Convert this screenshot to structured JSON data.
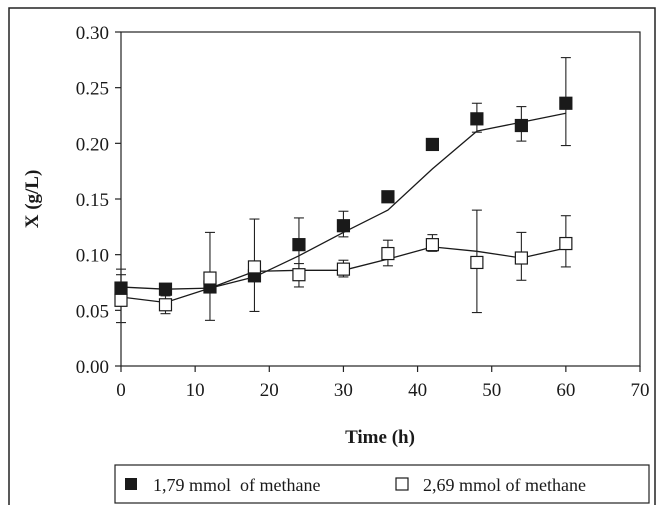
{
  "chart_data": {
    "type": "line",
    "xlabel": "Time (h)",
    "ylabel": "X (g/L)",
    "xlim": [
      0,
      70
    ],
    "ylim": [
      0,
      0.3
    ],
    "x_ticks": [
      "0",
      "10",
      "20",
      "30",
      "40",
      "50",
      "60",
      "70"
    ],
    "y_ticks": [
      "0.00",
      "0.05",
      "0.10",
      "0.15",
      "0.20",
      "0.25",
      "0.30"
    ],
    "grid": false,
    "legend_position": "bottom",
    "series": [
      {
        "name": "1,79 mmol  of methane",
        "marker": "filled-square",
        "color": "#1a1a1a",
        "points": [
          {
            "x": 0,
            "y": 0.07,
            "err_low": 0.058,
            "err_high": 0.082
          },
          {
            "x": 6,
            "y": 0.069,
            "err_low": 0.069,
            "err_high": 0.069
          },
          {
            "x": 12,
            "y": 0.071,
            "err_low": 0.071,
            "err_high": 0.071
          },
          {
            "x": 18,
            "y": 0.081,
            "err_low": 0.081,
            "err_high": 0.081
          },
          {
            "x": 24,
            "y": 0.109,
            "err_low": 0.085,
            "err_high": 0.133
          },
          {
            "x": 30,
            "y": 0.126,
            "err_low": 0.116,
            "err_high": 0.139
          },
          {
            "x": 36,
            "y": 0.152,
            "err_low": 0.152,
            "err_high": 0.152
          },
          {
            "x": 42,
            "y": 0.199,
            "err_low": 0.199,
            "err_high": 0.199
          },
          {
            "x": 48,
            "y": 0.222,
            "err_low": 0.21,
            "err_high": 0.236
          },
          {
            "x": 54,
            "y": 0.216,
            "err_low": 0.202,
            "err_high": 0.233
          },
          {
            "x": 60,
            "y": 0.236,
            "err_low": 0.198,
            "err_high": 0.277
          }
        ],
        "fit_line": [
          {
            "x": 0,
            "y": 0.071
          },
          {
            "x": 6,
            "y": 0.069
          },
          {
            "x": 12,
            "y": 0.07
          },
          {
            "x": 18,
            "y": 0.08
          },
          {
            "x": 24,
            "y": 0.099
          },
          {
            "x": 30,
            "y": 0.12
          },
          {
            "x": 36,
            "y": 0.14
          },
          {
            "x": 42,
            "y": 0.177
          },
          {
            "x": 48,
            "y": 0.211
          },
          {
            "x": 54,
            "y": 0.219
          },
          {
            "x": 60,
            "y": 0.227
          }
        ]
      },
      {
        "name": "2,69 mmol of methane",
        "marker": "open-square",
        "color": "#1a1a1a",
        "points": [
          {
            "x": 0,
            "y": 0.059,
            "err_low": 0.039,
            "err_high": 0.087
          },
          {
            "x": 6,
            "y": 0.055,
            "err_low": 0.047,
            "err_high": 0.063
          },
          {
            "x": 12,
            "y": 0.079,
            "err_low": 0.041,
            "err_high": 0.12
          },
          {
            "x": 18,
            "y": 0.089,
            "err_low": 0.049,
            "err_high": 0.132
          },
          {
            "x": 24,
            "y": 0.082,
            "err_low": 0.071,
            "err_high": 0.092
          },
          {
            "x": 30,
            "y": 0.087,
            "err_low": 0.08,
            "err_high": 0.095
          },
          {
            "x": 36,
            "y": 0.101,
            "err_low": 0.09,
            "err_high": 0.113
          },
          {
            "x": 42,
            "y": 0.109,
            "err_low": 0.103,
            "err_high": 0.118
          },
          {
            "x": 48,
            "y": 0.093,
            "err_low": 0.048,
            "err_high": 0.14
          },
          {
            "x": 54,
            "y": 0.097,
            "err_low": 0.077,
            "err_high": 0.12
          },
          {
            "x": 60,
            "y": 0.11,
            "err_low": 0.089,
            "err_high": 0.135
          }
        ],
        "fit_line": [
          {
            "x": 0,
            "y": 0.062
          },
          {
            "x": 6,
            "y": 0.057
          },
          {
            "x": 12,
            "y": 0.07
          },
          {
            "x": 18,
            "y": 0.085
          },
          {
            "x": 24,
            "y": 0.086
          },
          {
            "x": 30,
            "y": 0.086
          },
          {
            "x": 36,
            "y": 0.096
          },
          {
            "x": 42,
            "y": 0.107
          },
          {
            "x": 48,
            "y": 0.103
          },
          {
            "x": 54,
            "y": 0.097
          },
          {
            "x": 60,
            "y": 0.106
          }
        ]
      }
    ]
  }
}
